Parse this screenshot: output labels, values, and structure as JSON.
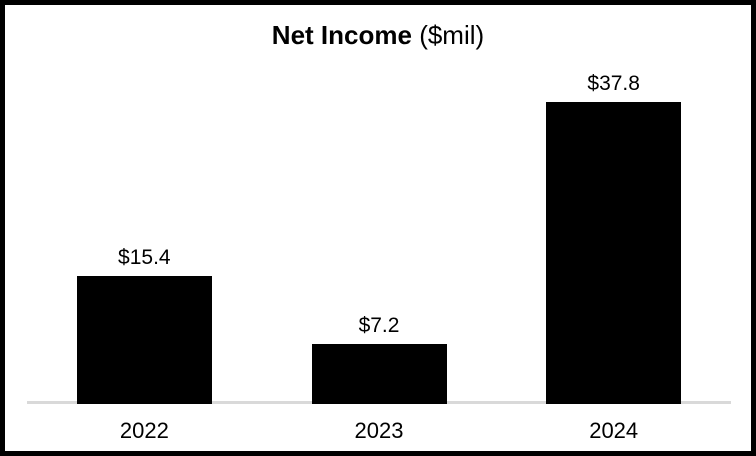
{
  "title": {
    "main": "Net Income",
    "unit": "($mil)"
  },
  "colors": {
    "bar": "#000000",
    "axis_line": "#d9d9d9",
    "background": "#ffffff",
    "border": "#000000",
    "text": "#000000"
  },
  "chart_data": {
    "type": "bar",
    "title": "Net Income ($mil)",
    "categories": [
      "2022",
      "2023",
      "2024"
    ],
    "values": [
      15.4,
      7.2,
      37.8
    ],
    "data_labels": [
      "$15.4",
      "$7.2",
      "$37.8"
    ],
    "xlabel": "",
    "ylabel": "",
    "ylim": [
      0,
      40
    ],
    "grid": false,
    "legend": false
  }
}
